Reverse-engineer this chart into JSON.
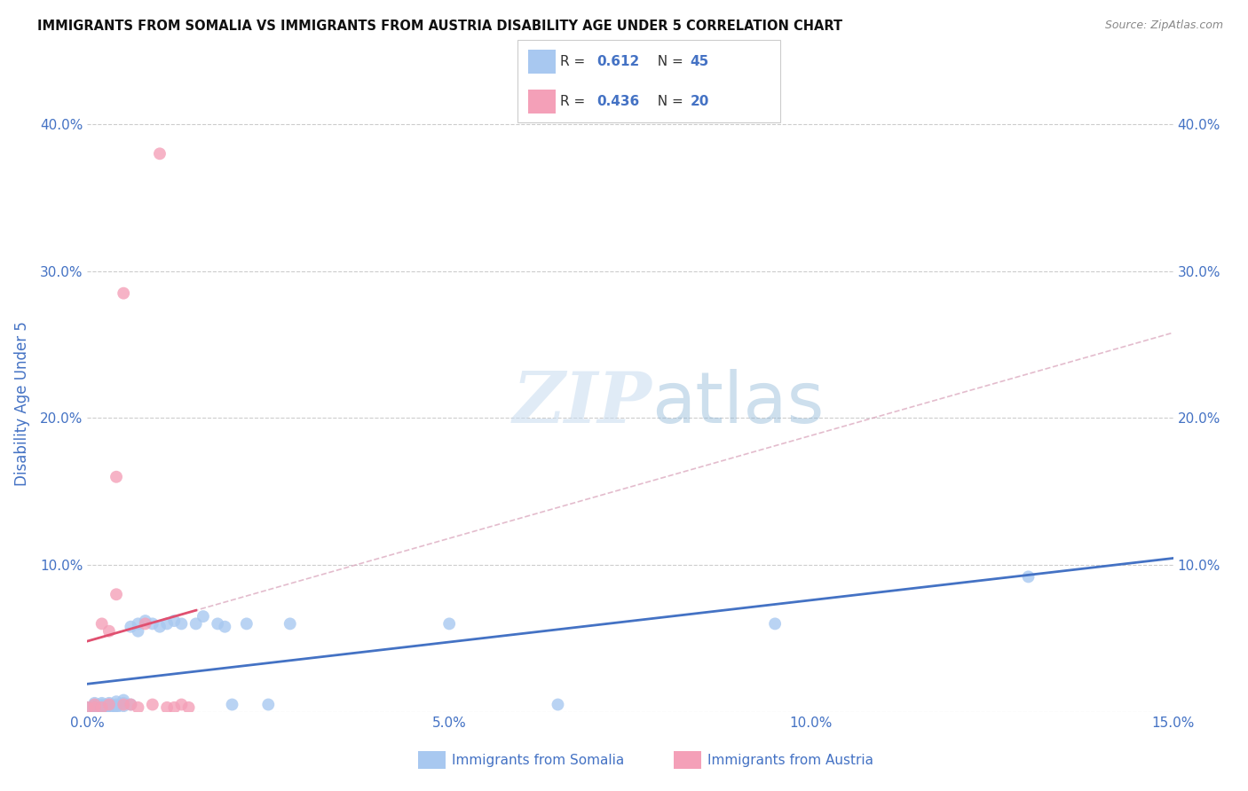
{
  "title": "IMMIGRANTS FROM SOMALIA VS IMMIGRANTS FROM AUSTRIA DISABILITY AGE UNDER 5 CORRELATION CHART",
  "source": "Source: ZipAtlas.com",
  "ylabel": "Disability Age Under 5",
  "xlim": [
    0.0,
    0.15
  ],
  "ylim": [
    0.0,
    0.42
  ],
  "x_ticks": [
    0.0,
    0.05,
    0.1,
    0.15
  ],
  "x_tick_labels": [
    "0.0%",
    "5.0%",
    "10.0%",
    "15.0%"
  ],
  "y_ticks": [
    0.0,
    0.1,
    0.2,
    0.3,
    0.4
  ],
  "y_tick_labels": [
    "",
    "10.0%",
    "20.0%",
    "30.0%",
    "40.0%"
  ],
  "right_y_ticks": [
    0.1,
    0.2,
    0.3,
    0.4
  ],
  "right_y_tick_labels": [
    "10.0%",
    "20.0%",
    "30.0%",
    "40.0%"
  ],
  "legend1_label": "Immigrants from Somalia",
  "legend2_label": "Immigrants from Austria",
  "r_somalia": 0.612,
  "n_somalia": 45,
  "r_austria": 0.436,
  "n_austria": 20,
  "somalia_color": "#A8C8F0",
  "austria_color": "#F4A0B8",
  "somalia_line_color": "#4472C4",
  "austria_line_color": "#E05070",
  "background_color": "#FFFFFF",
  "watermark_zip": "ZIP",
  "watermark_atlas": "atlas",
  "somalia_x": [
    0.0,
    0.001,
    0.001,
    0.001,
    0.001,
    0.001,
    0.001,
    0.002,
    0.002,
    0.002,
    0.002,
    0.002,
    0.003,
    0.003,
    0.003,
    0.003,
    0.004,
    0.004,
    0.004,
    0.004,
    0.005,
    0.005,
    0.005,
    0.006,
    0.006,
    0.007,
    0.007,
    0.008,
    0.009,
    0.01,
    0.011,
    0.012,
    0.013,
    0.015,
    0.016,
    0.018,
    0.019,
    0.02,
    0.022,
    0.025,
    0.028,
    0.05,
    0.065,
    0.095,
    0.13
  ],
  "somalia_y": [
    0.003,
    0.003,
    0.004,
    0.005,
    0.006,
    0.002,
    0.001,
    0.003,
    0.004,
    0.005,
    0.006,
    0.002,
    0.004,
    0.005,
    0.006,
    0.002,
    0.004,
    0.005,
    0.007,
    0.003,
    0.004,
    0.006,
    0.008,
    0.005,
    0.058,
    0.055,
    0.06,
    0.062,
    0.06,
    0.058,
    0.06,
    0.062,
    0.06,
    0.06,
    0.065,
    0.06,
    0.058,
    0.005,
    0.06,
    0.005,
    0.06,
    0.06,
    0.005,
    0.06,
    0.092
  ],
  "austria_x": [
    0.0,
    0.001,
    0.001,
    0.002,
    0.002,
    0.003,
    0.003,
    0.004,
    0.004,
    0.005,
    0.005,
    0.006,
    0.007,
    0.008,
    0.009,
    0.01,
    0.011,
    0.012,
    0.013,
    0.014
  ],
  "austria_y": [
    0.003,
    0.005,
    0.003,
    0.06,
    0.003,
    0.055,
    0.005,
    0.08,
    0.16,
    0.285,
    0.005,
    0.005,
    0.003,
    0.06,
    0.005,
    0.38,
    0.003,
    0.003,
    0.005,
    0.003
  ]
}
